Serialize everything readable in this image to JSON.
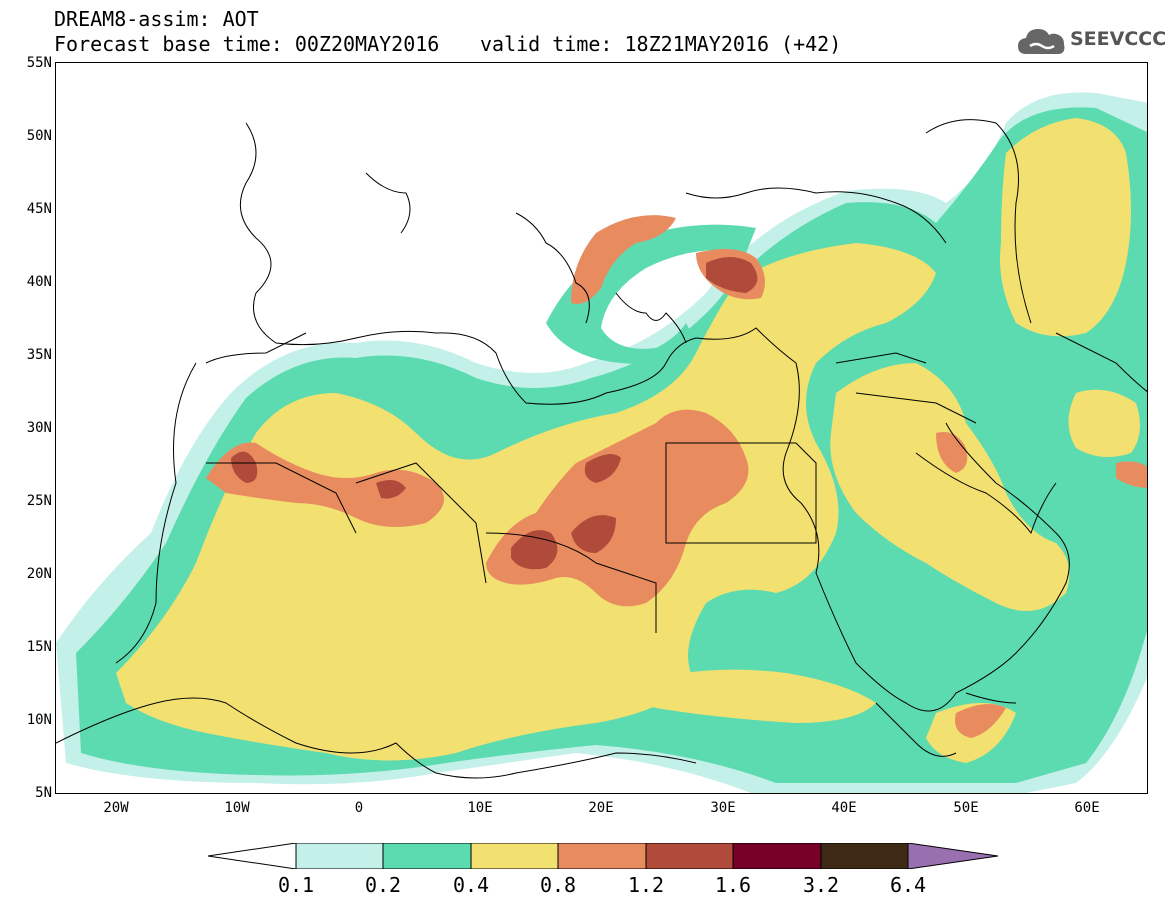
{
  "header": {
    "line1": "DREAM8-assim: AOT",
    "line2": "Forecast base time: 00Z20MAY2016",
    "valid": "valid time: 18Z21MAY2016 (+42)"
  },
  "logo": {
    "text": "SEEVCCC",
    "icon": "cloud-icon"
  },
  "map": {
    "lat_labels": [
      "55N",
      "50N",
      "45N",
      "40N",
      "35N",
      "30N",
      "25N",
      "20N",
      "15N",
      "10N",
      "5N"
    ],
    "lon_labels": [
      "20W",
      "10W",
      "0",
      "10E",
      "20E",
      "30E",
      "40E",
      "50E",
      "60E"
    ],
    "lon_range": [
      -25,
      65
    ],
    "lat_range": [
      5,
      55
    ]
  },
  "colorbar": {
    "labels": [
      "0.1",
      "0.2",
      "0.4",
      "0.8",
      "1.2",
      "1.6",
      "3.2",
      "6.4"
    ],
    "colors": [
      "#c4f0ea",
      "#5cdbb0",
      "#f2e070",
      "#e88c60",
      "#b04a3a",
      "#780028",
      "#3e2a14",
      "#9870b0"
    ]
  }
}
